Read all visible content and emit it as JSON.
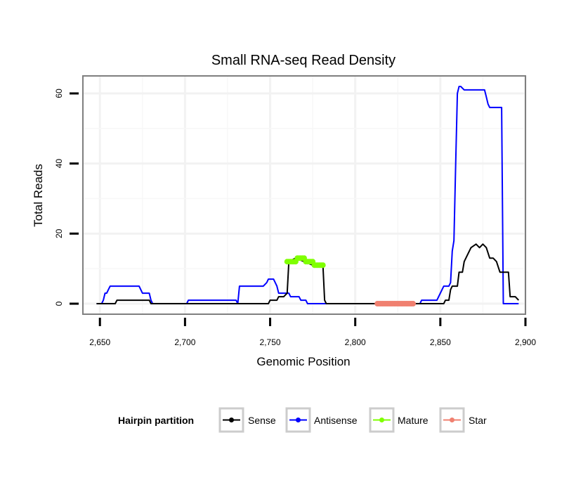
{
  "chart_data": {
    "type": "line",
    "title": "Small RNA-seq Read Density",
    "xlabel": "Genomic Position",
    "ylabel": "Total Reads",
    "xlim": [
      2640,
      2900
    ],
    "ylim": [
      -3,
      65
    ],
    "x_ticks": [
      2650,
      2700,
      2750,
      2800,
      2850,
      2900
    ],
    "x_tick_labels": [
      "2,650",
      "2,700",
      "2,750",
      "2,800",
      "2,850",
      "2,900"
    ],
    "y_ticks": [
      0,
      20,
      40,
      60
    ],
    "y_tick_labels": [
      "0",
      "20",
      "40",
      "60"
    ],
    "legend": {
      "title": "Hairpin partition",
      "position": "bottom",
      "entries": [
        "Sense",
        "Antisense",
        "Mature",
        "Star"
      ]
    },
    "series": [
      {
        "name": "Sense",
        "color": "#000000",
        "style": "line",
        "x": [
          2648,
          2659,
          2660,
          2679,
          2680,
          2682,
          2683,
          2699,
          2700,
          2749,
          2750,
          2754,
          2755,
          2758,
          2760,
          2761,
          2765,
          2770,
          2775,
          2778,
          2781,
          2782,
          2783,
          2852,
          2853,
          2855,
          2856,
          2857,
          2858,
          2860,
          2861,
          2863,
          2864,
          2866,
          2868,
          2871,
          2873,
          2875,
          2877,
          2879,
          2881,
          2883,
          2885,
          2890,
          2891,
          2894,
          2896
        ],
        "y": [
          0,
          0,
          1,
          1,
          0,
          0,
          0,
          0,
          0,
          0,
          1,
          1,
          2,
          2,
          3,
          12,
          13,
          12,
          11,
          11,
          11,
          1,
          0,
          0,
          1,
          1,
          4,
          5,
          5,
          5,
          9,
          9,
          12,
          14,
          16,
          17,
          16,
          17,
          16,
          13,
          13,
          12,
          9,
          9,
          2,
          2,
          1
        ]
      },
      {
        "name": "Antisense",
        "color": "#0000ff",
        "style": "line",
        "x": [
          2648,
          2651,
          2652,
          2653,
          2654,
          2655,
          2656,
          2673,
          2674,
          2675,
          2679,
          2680,
          2681,
          2682,
          2697,
          2701,
          2702,
          2724,
          2725,
          2730,
          2731,
          2732,
          2745,
          2746,
          2748,
          2749,
          2752,
          2753,
          2754,
          2755,
          2761,
          2762,
          2767,
          2768,
          2771,
          2772,
          2774,
          2775,
          2777,
          2778,
          2780,
          2781,
          2838,
          2839,
          2848,
          2849,
          2851,
          2852,
          2855,
          2856,
          2857,
          2858,
          2859,
          2860,
          2861,
          2862,
          2864,
          2876,
          2877,
          2878,
          2879,
          2884,
          2886,
          2887,
          2896
        ],
        "y": [
          0,
          0,
          1,
          3,
          3,
          4,
          5,
          5,
          4,
          3,
          3,
          1,
          0,
          0,
          0,
          0,
          1,
          1,
          1,
          1,
          0,
          5,
          5,
          5,
          6,
          7,
          7,
          6,
          5,
          3,
          3,
          2,
          2,
          1,
          1,
          0,
          0,
          0,
          0,
          0,
          0,
          0,
          0,
          1,
          1,
          2,
          4,
          5,
          5,
          6,
          15,
          18,
          40,
          60,
          62,
          62,
          61,
          61,
          59,
          57,
          56,
          56,
          56,
          0,
          0
        ]
      },
      {
        "name": "Mature",
        "color": "#7fff00",
        "style": "points",
        "x": [
          2760,
          2761,
          2762,
          2763,
          2764,
          2765,
          2766,
          2767,
          2768,
          2769,
          2770,
          2771,
          2772,
          2773,
          2774,
          2775,
          2776,
          2777,
          2778,
          2779,
          2780,
          2781
        ],
        "y": [
          12,
          12,
          12,
          12,
          12,
          12,
          13,
          13,
          13,
          13,
          13,
          12,
          12,
          12,
          12,
          12,
          11,
          11,
          11,
          11,
          11,
          11
        ]
      },
      {
        "name": "Star",
        "color": "#f08070",
        "style": "points",
        "x": [
          2813,
          2814,
          2815,
          2816,
          2817,
          2818,
          2819,
          2820,
          2821,
          2822,
          2823,
          2824,
          2825,
          2826,
          2827,
          2828,
          2829,
          2830,
          2831,
          2832,
          2833,
          2834
        ],
        "y": [
          0,
          0,
          0,
          0,
          0,
          0,
          0,
          0,
          0,
          0,
          0,
          0,
          0,
          0,
          0,
          0,
          0,
          0,
          0,
          0,
          0,
          0
        ]
      }
    ]
  }
}
